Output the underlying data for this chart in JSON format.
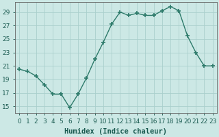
{
  "x": [
    0,
    1,
    2,
    3,
    4,
    5,
    6,
    7,
    8,
    9,
    10,
    11,
    12,
    13,
    14,
    15,
    16,
    17,
    18,
    19,
    20,
    21,
    22,
    23
  ],
  "y": [
    20.5,
    20.2,
    19.5,
    18.2,
    16.8,
    16.8,
    14.8,
    16.8,
    19.2,
    22.0,
    24.5,
    27.2,
    29.0,
    28.5,
    28.8,
    28.5,
    28.5,
    29.2,
    29.8,
    29.2,
    25.5,
    23.0,
    21.0,
    21.0
  ],
  "line_color": "#2d7a6a",
  "marker": "+",
  "marker_size": 5,
  "bg_color": "#cce8e5",
  "grid_color": "#aacfcc",
  "xlabel": "Humidex (Indice chaleur)",
  "xlim": [
    -0.5,
    23.5
  ],
  "ylim": [
    14.0,
    30.5
  ],
  "yticks": [
    15,
    17,
    19,
    21,
    23,
    25,
    27,
    29
  ],
  "xticks": [
    0,
    1,
    2,
    3,
    4,
    5,
    6,
    7,
    8,
    9,
    10,
    11,
    12,
    13,
    14,
    15,
    16,
    17,
    18,
    19,
    20,
    21,
    22,
    23
  ],
  "xlabel_fontsize": 7.5,
  "tick_fontsize": 6.5,
  "line_width": 1.0,
  "marker_linewidth": 1.2
}
